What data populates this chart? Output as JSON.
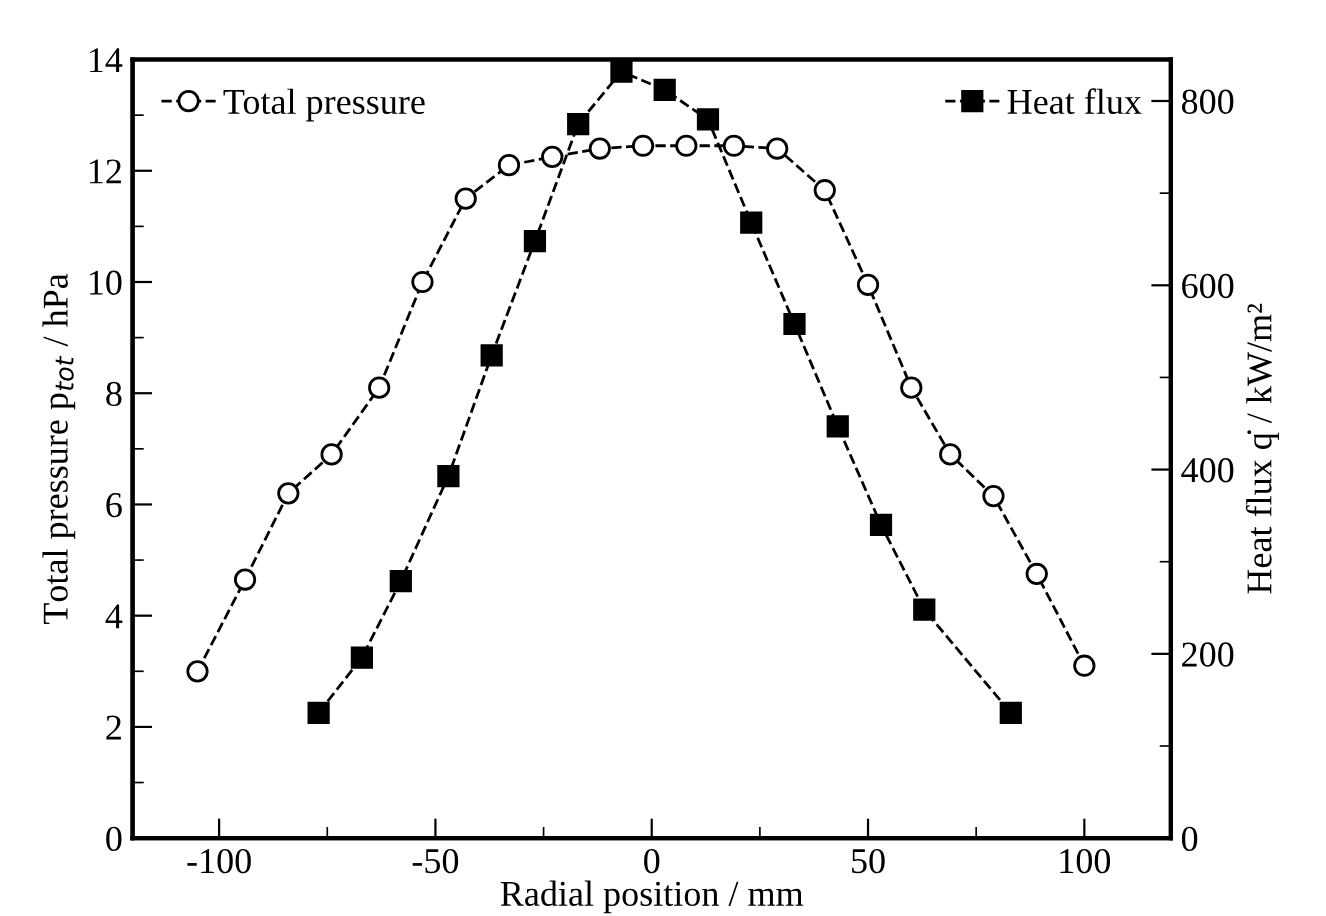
{
  "chart_data": {
    "type": "line",
    "xlabel": "Radial position / mm",
    "ylabel": "Total pressure p$_{tot}$ / hPa",
    "y2label": "Heat flux q̇ / kW/m²",
    "xlim": [
      -120,
      120
    ],
    "xticks": [
      -100,
      {
        "value": -75,
        "label": null
      },
      -50,
      {
        "value": -25,
        "label": null
      },
      0,
      {
        "value": 25,
        "label": null
      },
      50,
      {
        "value": 75,
        "label": null
      },
      100
    ],
    "ylim": [
      0,
      14
    ],
    "yticks": [
      0,
      {
        "value": 1,
        "label": null
      },
      2,
      {
        "value": 3,
        "label": null
      },
      4,
      {
        "value": 5,
        "label": null
      },
      6,
      {
        "value": 7,
        "label": null
      },
      8,
      {
        "value": 9,
        "label": null
      },
      10,
      {
        "value": 11,
        "label": null
      },
      12,
      {
        "value": 13,
        "label": null
      },
      14
    ],
    "y2lim": [
      0,
      845
    ],
    "y2ticks": [
      0,
      {
        "value": 100,
        "label": null
      },
      200,
      {
        "value": 300,
        "label": null
      },
      400,
      {
        "value": 500,
        "label": null
      },
      600,
      {
        "value": 700,
        "label": null
      },
      800
    ],
    "legend": "top",
    "grid": false,
    "line_style": "dashed",
    "series": [
      {
        "name": "Total pressure",
        "color": "#000000",
        "marker": "circle",
        "x": [
          -105,
          -94,
          -84,
          -74,
          -63,
          -53,
          -43,
          -33,
          -23,
          -12,
          -2,
          8,
          19,
          29,
          40,
          50,
          60,
          69,
          79,
          89,
          100
        ],
        "values": [
          3.0,
          4.65,
          6.2,
          6.9,
          8.1,
          10.0,
          11.5,
          12.1,
          12.25,
          12.4,
          12.45,
          12.45,
          12.45,
          12.4,
          11.65,
          9.95,
          8.1,
          6.9,
          6.15,
          4.75,
          3.1
        ]
      },
      {
        "name": "Heat flux",
        "color": "#000000",
        "marker": "square",
        "axis": "y2",
        "x": [
          -77,
          -67,
          -58,
          -47,
          -37,
          -27,
          -17,
          -7,
          3,
          13,
          23,
          33,
          43,
          53,
          63,
          83
        ],
        "values": [
          136,
          196,
          279,
          393,
          524,
          648,
          775,
          832,
          812,
          780,
          668,
          558,
          447,
          340,
          248,
          136
        ]
      }
    ]
  }
}
